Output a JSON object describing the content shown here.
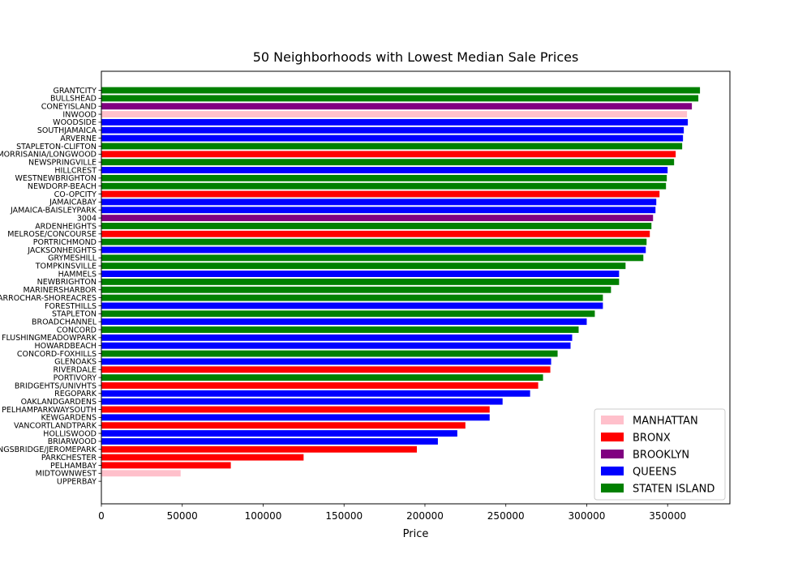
{
  "chart_data": {
    "type": "bar",
    "orientation": "horizontal",
    "title": "50 Neighborhoods with Lowest Median Sale Prices",
    "xlabel": "Price",
    "ylabel": "",
    "xlim": [
      0,
      388500
    ],
    "xticks": [
      0,
      50000,
      100000,
      150000,
      200000,
      250000,
      300000,
      350000
    ],
    "xtick_labels": [
      "0",
      "50000",
      "100000",
      "150000",
      "200000",
      "250000",
      "300000",
      "350000"
    ],
    "grid": false,
    "legend_position": "lower-right",
    "colors": {
      "MANHATTAN": "#ffc0cb",
      "BRONX": "#ff0000",
      "BROOKLYN": "#800080",
      "QUEENS": "#0000ff",
      "STATEN ISLAND": "#008000"
    },
    "legend": [
      {
        "label": "MANHATTAN",
        "color": "#ffc0cb"
      },
      {
        "label": "BRONX",
        "color": "#ff0000"
      },
      {
        "label": "BROOKLYN",
        "color": "#800080"
      },
      {
        "label": "QUEENS",
        "color": "#0000ff"
      },
      {
        "label": "STATEN ISLAND",
        "color": "#008000"
      }
    ],
    "bars": [
      {
        "label": "GRANTCITY",
        "value": 370000,
        "borough": "STATEN ISLAND"
      },
      {
        "label": "BULLSHEAD",
        "value": 369000,
        "borough": "STATEN ISLAND"
      },
      {
        "label": "CONEYISLAND",
        "value": 365000,
        "borough": "BROOKLYN"
      },
      {
        "label": "INWOOD",
        "value": 362000,
        "borough": "MANHATTAN"
      },
      {
        "label": "WOODSIDE",
        "value": 362500,
        "borough": "QUEENS"
      },
      {
        "label": "SOUTHJAMAICA",
        "value": 360000,
        "borough": "QUEENS"
      },
      {
        "label": "ARVERNE",
        "value": 359500,
        "borough": "QUEENS"
      },
      {
        "label": "STAPLETON-CLIFTON",
        "value": 359000,
        "borough": "STATEN ISLAND"
      },
      {
        "label": "MORRISANIA/LONGWOOD",
        "value": 355000,
        "borough": "BRONX"
      },
      {
        "label": "NEWSPRINGVILLE",
        "value": 354000,
        "borough": "STATEN ISLAND"
      },
      {
        "label": "HILLCREST",
        "value": 350000,
        "borough": "QUEENS"
      },
      {
        "label": "WESTNEWBRIGHTON",
        "value": 349500,
        "borough": "STATEN ISLAND"
      },
      {
        "label": "NEWDORP-BEACH",
        "value": 349000,
        "borough": "STATEN ISLAND"
      },
      {
        "label": "CO-OPCITY",
        "value": 345000,
        "borough": "BRONX"
      },
      {
        "label": "JAMAICABAY",
        "value": 343000,
        "borough": "QUEENS"
      },
      {
        "label": "JAMAICA-BAISLEYPARK",
        "value": 342500,
        "borough": "QUEENS"
      },
      {
        "label": "3004",
        "value": 341000,
        "borough": "BROOKLYN"
      },
      {
        "label": "ARDENHEIGHTS",
        "value": 340000,
        "borough": "STATEN ISLAND"
      },
      {
        "label": "MELROSE/CONCOURSE",
        "value": 339000,
        "borough": "BRONX"
      },
      {
        "label": "PORTRICHMOND",
        "value": 337000,
        "borough": "STATEN ISLAND"
      },
      {
        "label": "JACKSONHEIGHTS",
        "value": 336500,
        "borough": "QUEENS"
      },
      {
        "label": "GRYMESHILL",
        "value": 335000,
        "borough": "STATEN ISLAND"
      },
      {
        "label": "TOMPKINSVILLE",
        "value": 324000,
        "borough": "STATEN ISLAND"
      },
      {
        "label": "HAMMELS",
        "value": 320000,
        "borough": "QUEENS"
      },
      {
        "label": "NEWBRIGHTON",
        "value": 320000,
        "borough": "STATEN ISLAND"
      },
      {
        "label": "MARINERSHARBOR",
        "value": 315000,
        "borough": "STATEN ISLAND"
      },
      {
        "label": "ROSSVILLE-RICHMOND VALLEY/HUGUENOT/ANNADALE/WOODROW/EGGERTSVILLE/PLEASANTPLAINS/PRINCESBAY/ELTINGVILLE/GREATKILLS/GREATKILLS-BAYTERRACE/OAKWOOD/OAKWOOD-BEACH/BAYTERRACE/ARROCHAR-SHOREACRES",
        "value": 310000,
        "borough": "STATEN ISLAND"
      },
      {
        "label": "FORESTHILLS",
        "value": 310000,
        "borough": "QUEENS"
      },
      {
        "label": "STAPLETON",
        "value": 305000,
        "borough": "STATEN ISLAND"
      },
      {
        "label": "BROADCHANNEL",
        "value": 300000,
        "borough": "QUEENS"
      },
      {
        "label": "CONCORD",
        "value": 295000,
        "borough": "STATEN ISLAND"
      },
      {
        "label": "FLUSHINGMEADOWPARK",
        "value": 291000,
        "borough": "QUEENS"
      },
      {
        "label": "HOWARDBEACH",
        "value": 290000,
        "borough": "QUEENS"
      },
      {
        "label": "CONCORD-FOXHILLS",
        "value": 282000,
        "borough": "STATEN ISLAND"
      },
      {
        "label": "GLENOAKS",
        "value": 278000,
        "borough": "QUEENS"
      },
      {
        "label": "RIVERDALE",
        "value": 277500,
        "borough": "BRONX"
      },
      {
        "label": "PORTIVORY",
        "value": 273000,
        "borough": "STATEN ISLAND"
      },
      {
        "label": "BRIDGEHTS/UNIVHTS",
        "value": 270000,
        "borough": "BRONX"
      },
      {
        "label": "REGOPARK",
        "value": 265000,
        "borough": "QUEENS"
      },
      {
        "label": "OAKLANDGARDENS",
        "value": 248000,
        "borough": "QUEENS"
      },
      {
        "label": "PELHAMPARKWAYSOUTH",
        "value": 240000,
        "borough": "BRONX"
      },
      {
        "label": "KEWGARDENS",
        "value": 240000,
        "borough": "QUEENS"
      },
      {
        "label": "VANCORTLANDTPARK",
        "value": 225000,
        "borough": "BRONX"
      },
      {
        "label": "HOLLISWOOD",
        "value": 220000,
        "borough": "QUEENS"
      },
      {
        "label": "BRIARWOOD",
        "value": 208000,
        "borough": "QUEENS"
      },
      {
        "label": "KINGSBRIDGE/JEROMEPARK",
        "value": 195000,
        "borough": "BRONX"
      },
      {
        "label": "PARKCHESTER",
        "value": 125000,
        "borough": "BRONX"
      },
      {
        "label": "PELHAMBAY",
        "value": 80000,
        "borough": "BRONX"
      },
      {
        "label": "MIDTOWNWEST",
        "value": 49000,
        "borough": "MANHATTAN"
      },
      {
        "label": "UPPERBAY",
        "value": 0,
        "borough": "MANHATTAN"
      }
    ]
  }
}
